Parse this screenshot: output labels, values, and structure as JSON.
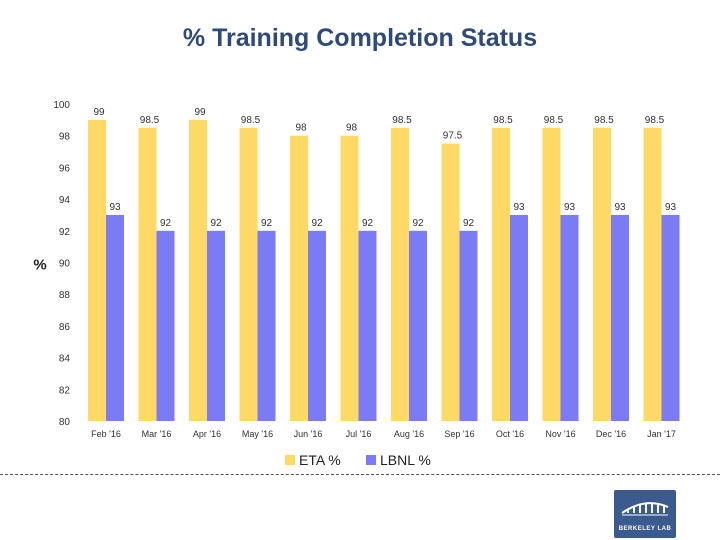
{
  "slide": {
    "title": "% Training Completion Status"
  },
  "chart_data": {
    "type": "bar",
    "title": "",
    "xlabel": "",
    "ylabel": "%",
    "ylim": [
      80,
      100
    ],
    "yticks": [
      80,
      82,
      84,
      86,
      88,
      90,
      92,
      94,
      96,
      98,
      100
    ],
    "grid": false,
    "legend_position": "bottom",
    "categories": [
      "Feb '16",
      "Mar '16",
      "Apr '16",
      "May '16",
      "Jun '16",
      "Jul '16",
      "Aug '16",
      "Sep '16",
      "Oct '16",
      "Nov '16",
      "Dec '16",
      "Jan '17"
    ],
    "series": [
      {
        "name": "ETA %",
        "color": "#ffd966",
        "values": [
          99,
          98.5,
          99,
          98.5,
          98,
          98,
          98.5,
          97.5,
          98.5,
          98.5,
          98.5,
          98.5
        ],
        "labels": [
          "99",
          "98.5",
          "99",
          "98.5",
          "98",
          "98",
          "98.5",
          "97.5",
          "98.5",
          "98.5",
          "98.5",
          "98.5"
        ]
      },
      {
        "name": "LBNL %",
        "color": "#7b7bf5",
        "values": [
          93,
          92,
          92,
          92,
          92,
          92,
          92,
          92,
          93,
          93,
          93,
          93
        ],
        "labels": [
          "93",
          "92",
          "92",
          "92",
          "92",
          "92",
          "92",
          "92",
          "93",
          "93",
          "93",
          "93"
        ]
      }
    ]
  },
  "logo": {
    "text": "BERKELEY LAB",
    "color": "#3b5a8f"
  }
}
